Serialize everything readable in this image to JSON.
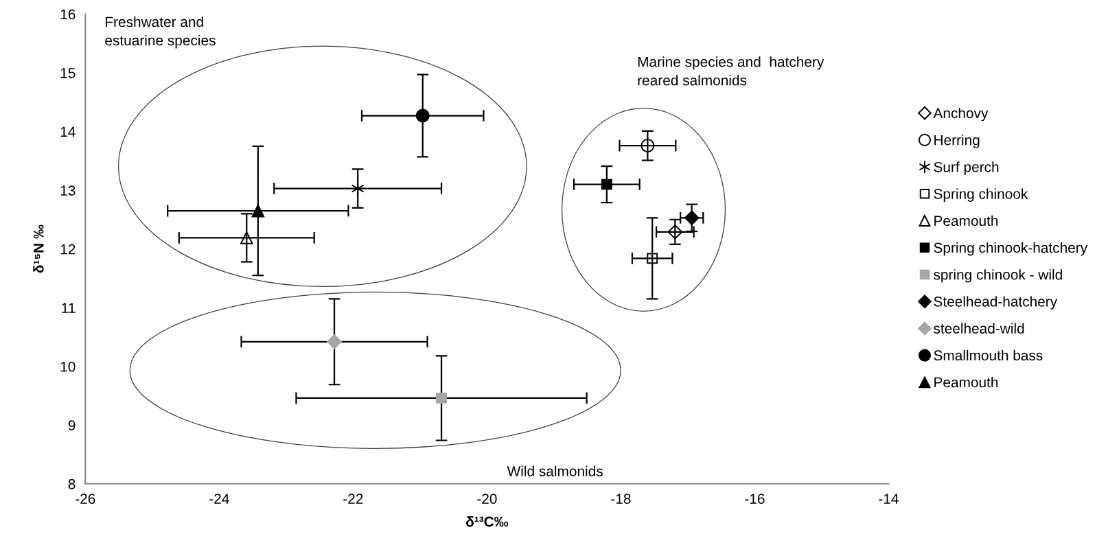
{
  "chart_data": {
    "type": "scatter",
    "xlabel": "δ¹³C‰",
    "ylabel": "δ¹⁵N ‰",
    "xlim": [
      -26,
      -14
    ],
    "xticks": [
      -26,
      -24,
      -22,
      -20,
      -18,
      -16,
      -14
    ],
    "ylim": [
      8,
      16
    ],
    "yticks": [
      8,
      9,
      10,
      11,
      12,
      13,
      14,
      15,
      16
    ],
    "grid": false,
    "legend": "right",
    "annotations": [
      "Freshwater and\nestuarine species",
      "Marine species and  hatchery\nreared salmonids",
      "Wild salmonids"
    ],
    "series": [
      {
        "name": "Anchovy",
        "marker": "diamond",
        "color": null,
        "x": [
          -17.19
        ],
        "values": [
          12.29
        ],
        "errors": [
          0.21
        ],
        "xerrors": [
          0.28
        ]
      },
      {
        "name": "Herring",
        "marker": "circle",
        "color": null,
        "x": [
          -17.6
        ],
        "values": [
          13.76
        ],
        "errors": [
          0.25
        ],
        "xerrors": [
          0.42
        ]
      },
      {
        "name": "Surf perch",
        "marker": "cross",
        "color": "#000000",
        "x": [
          -21.93
        ],
        "values": [
          13.03
        ],
        "errors": [
          0.33
        ],
        "xerrors": [
          1.25
        ]
      },
      {
        "name": "Spring chinook",
        "marker": "square",
        "color": null,
        "x": [
          -17.53
        ],
        "values": [
          11.84
        ],
        "errors": [
          0.69
        ],
        "xerrors": [
          0.3
        ]
      },
      {
        "name": "Peamouth",
        "marker": "triangle",
        "color": null,
        "x": [
          -23.59
        ],
        "values": [
          12.19
        ],
        "errors": [
          0.41
        ],
        "xerrors": [
          1.01
        ]
      },
      {
        "name": "Spring chinook-hatchery",
        "marker": "square",
        "color": "#000000",
        "x": [
          -18.21
        ],
        "values": [
          13.1
        ],
        "errors": [
          0.31
        ],
        "xerrors": [
          0.49
        ]
      },
      {
        "name": "spring chinook - wild",
        "marker": "square",
        "color": "#a6a6a6",
        "x": [
          -20.68
        ],
        "values": [
          9.46
        ],
        "errors": [
          0.72
        ],
        "xerrors": [
          2.17
        ]
      },
      {
        "name": "Steelhead-hatchery",
        "marker": "diamond",
        "color": "#000000",
        "x": [
          -16.94
        ],
        "values": [
          12.53
        ],
        "errors": [
          0.23
        ],
        "xerrors": [
          0.17
        ]
      },
      {
        "name": "steelhead-wild",
        "marker": "diamond",
        "color": "#a6a6a6",
        "x": [
          -22.28
        ],
        "values": [
          10.42
        ],
        "errors": [
          0.73
        ],
        "xerrors": [
          1.39
        ]
      },
      {
        "name": "Smallmouth bass",
        "marker": "circle",
        "color": "#000000",
        "x": [
          -20.96
        ],
        "values": [
          14.27
        ],
        "errors": [
          0.7
        ],
        "xerrors": [
          0.91
        ]
      },
      {
        "name": "Peamouth",
        "marker": "triangle",
        "color": "#000000",
        "x": [
          -23.42
        ],
        "values": [
          12.65
        ],
        "errors": [
          1.1
        ],
        "xerrors": [
          1.35
        ]
      }
    ]
  }
}
